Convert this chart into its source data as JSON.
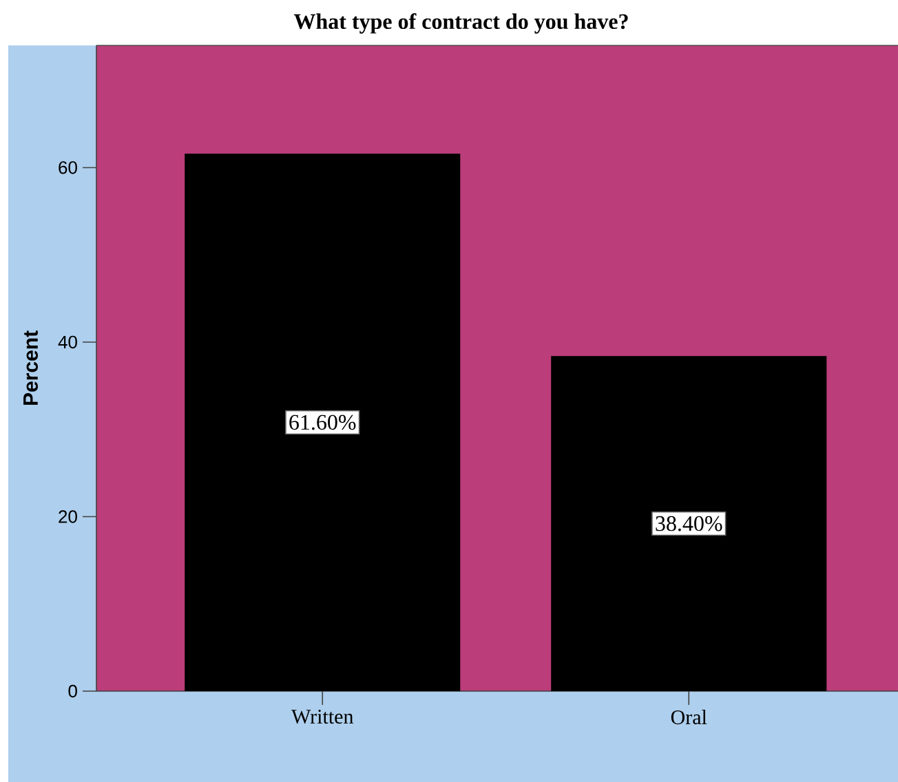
{
  "chart_data": {
    "type": "bar",
    "title": "What type of contract do you have?",
    "ylabel": "Percent",
    "categories": [
      "Written",
      "Oral"
    ],
    "values": [
      61.6,
      38.4
    ],
    "value_labels": [
      "61.60%",
      "38.40%"
    ],
    "color": "#000000",
    "ylim": [
      0,
      74
    ],
    "yticks": [
      0,
      20,
      40,
      60
    ]
  }
}
